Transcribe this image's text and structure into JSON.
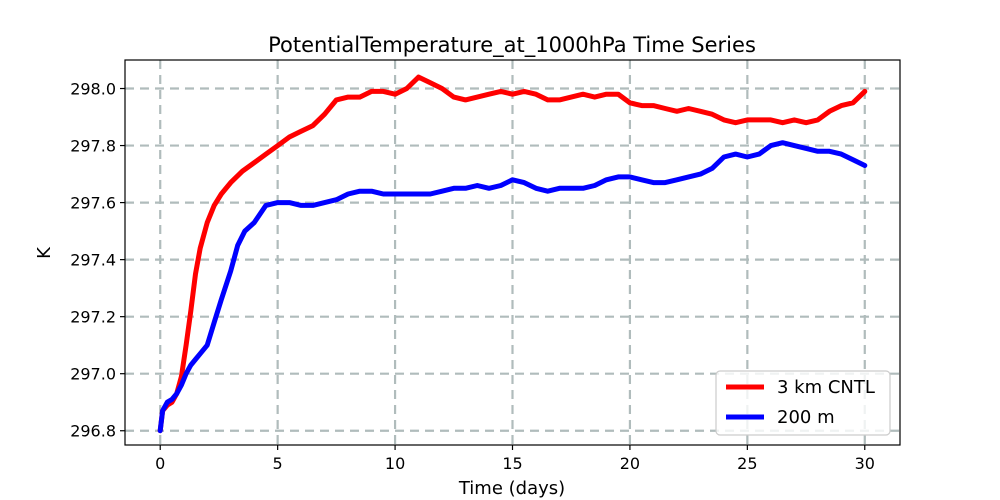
{
  "chart_data": {
    "type": "line",
    "title": "PotentialTemperature_at_1000hPa Time Series",
    "xlabel": "Time (days)",
    "ylabel": "K",
    "xlim": [
      -1.5,
      31.5
    ],
    "ylim": [
      296.75,
      298.1
    ],
    "xticks": [
      0,
      5,
      10,
      15,
      20,
      25,
      30
    ],
    "yticks": [
      296.8,
      297.0,
      297.2,
      297.4,
      297.6,
      297.8,
      298.0
    ],
    "xtick_labels": [
      "0",
      "5",
      "10",
      "15",
      "20",
      "25",
      "30"
    ],
    "ytick_labels": [
      "296.8",
      "297.0",
      "297.2",
      "297.4",
      "297.6",
      "297.8",
      "298.0"
    ],
    "grid": true,
    "legend_position": "lower-right",
    "series": [
      {
        "name": "3 km CNTL",
        "color": "#ff0000",
        "x": [
          0,
          0.1,
          0.3,
          0.5,
          0.7,
          0.9,
          1.1,
          1.3,
          1.5,
          1.7,
          2.0,
          2.3,
          2.6,
          3.0,
          3.5,
          4.0,
          4.5,
          5.0,
          5.5,
          6.0,
          6.5,
          7.0,
          7.5,
          8.0,
          8.5,
          9.0,
          9.5,
          10.0,
          10.5,
          11.0,
          11.5,
          12.0,
          12.5,
          13.0,
          13.5,
          14.0,
          14.5,
          15.0,
          15.5,
          16.0,
          16.5,
          17.0,
          17.5,
          18.0,
          18.5,
          19.0,
          19.5,
          20.0,
          20.5,
          21.0,
          21.5,
          22.0,
          22.5,
          23.0,
          23.5,
          24.0,
          24.5,
          25.0,
          25.5,
          26.0,
          26.5,
          27.0,
          27.5,
          28.0,
          28.5,
          29.0,
          29.5,
          30.0
        ],
        "values": [
          296.8,
          296.87,
          296.89,
          296.9,
          296.93,
          296.99,
          297.1,
          297.22,
          297.35,
          297.44,
          297.53,
          297.59,
          297.63,
          297.67,
          297.71,
          297.74,
          297.77,
          297.8,
          297.83,
          297.85,
          297.87,
          297.91,
          297.96,
          297.97,
          297.97,
          297.99,
          297.99,
          297.98,
          298.0,
          298.04,
          298.02,
          298.0,
          297.97,
          297.96,
          297.97,
          297.98,
          297.99,
          297.98,
          297.99,
          297.98,
          297.96,
          297.96,
          297.97,
          297.98,
          297.97,
          297.98,
          297.98,
          297.95,
          297.94,
          297.94,
          297.93,
          297.92,
          297.93,
          297.92,
          297.91,
          297.89,
          297.88,
          297.89,
          297.89,
          297.89,
          297.88,
          297.89,
          297.88,
          297.89,
          297.92,
          297.94,
          297.95,
          297.99
        ]
      },
      {
        "name": "200 m",
        "color": "#0000ff",
        "x": [
          0,
          0.1,
          0.3,
          0.5,
          0.7,
          0.9,
          1.1,
          1.3,
          1.5,
          1.7,
          2.0,
          2.3,
          2.6,
          3.0,
          3.3,
          3.6,
          4.0,
          4.5,
          5.0,
          5.5,
          6.0,
          6.5,
          7.0,
          7.5,
          8.0,
          8.5,
          9.0,
          9.5,
          10.0,
          10.5,
          11.0,
          11.5,
          12.0,
          12.5,
          13.0,
          13.5,
          14.0,
          14.5,
          15.0,
          15.5,
          16.0,
          16.5,
          17.0,
          17.5,
          18.0,
          18.5,
          19.0,
          19.5,
          20.0,
          20.5,
          21.0,
          21.5,
          22.0,
          22.5,
          23.0,
          23.5,
          24.0,
          24.5,
          25.0,
          25.5,
          26.0,
          26.5,
          27.0,
          27.5,
          28.0,
          28.5,
          29.0,
          29.5,
          30.0
        ],
        "values": [
          296.8,
          296.87,
          296.9,
          296.91,
          296.93,
          296.96,
          297.0,
          297.03,
          297.05,
          297.07,
          297.1,
          297.18,
          297.26,
          297.36,
          297.45,
          297.5,
          297.53,
          297.59,
          297.6,
          297.6,
          297.59,
          297.59,
          297.6,
          297.61,
          297.63,
          297.64,
          297.64,
          297.63,
          297.63,
          297.63,
          297.63,
          297.63,
          297.64,
          297.65,
          297.65,
          297.66,
          297.65,
          297.66,
          297.68,
          297.67,
          297.65,
          297.64,
          297.65,
          297.65,
          297.65,
          297.66,
          297.68,
          297.69,
          297.69,
          297.68,
          297.67,
          297.67,
          297.68,
          297.69,
          297.7,
          297.72,
          297.76,
          297.77,
          297.76,
          297.77,
          297.8,
          297.81,
          297.8,
          297.79,
          297.78,
          297.78,
          297.77,
          297.75,
          297.73
        ]
      }
    ]
  }
}
